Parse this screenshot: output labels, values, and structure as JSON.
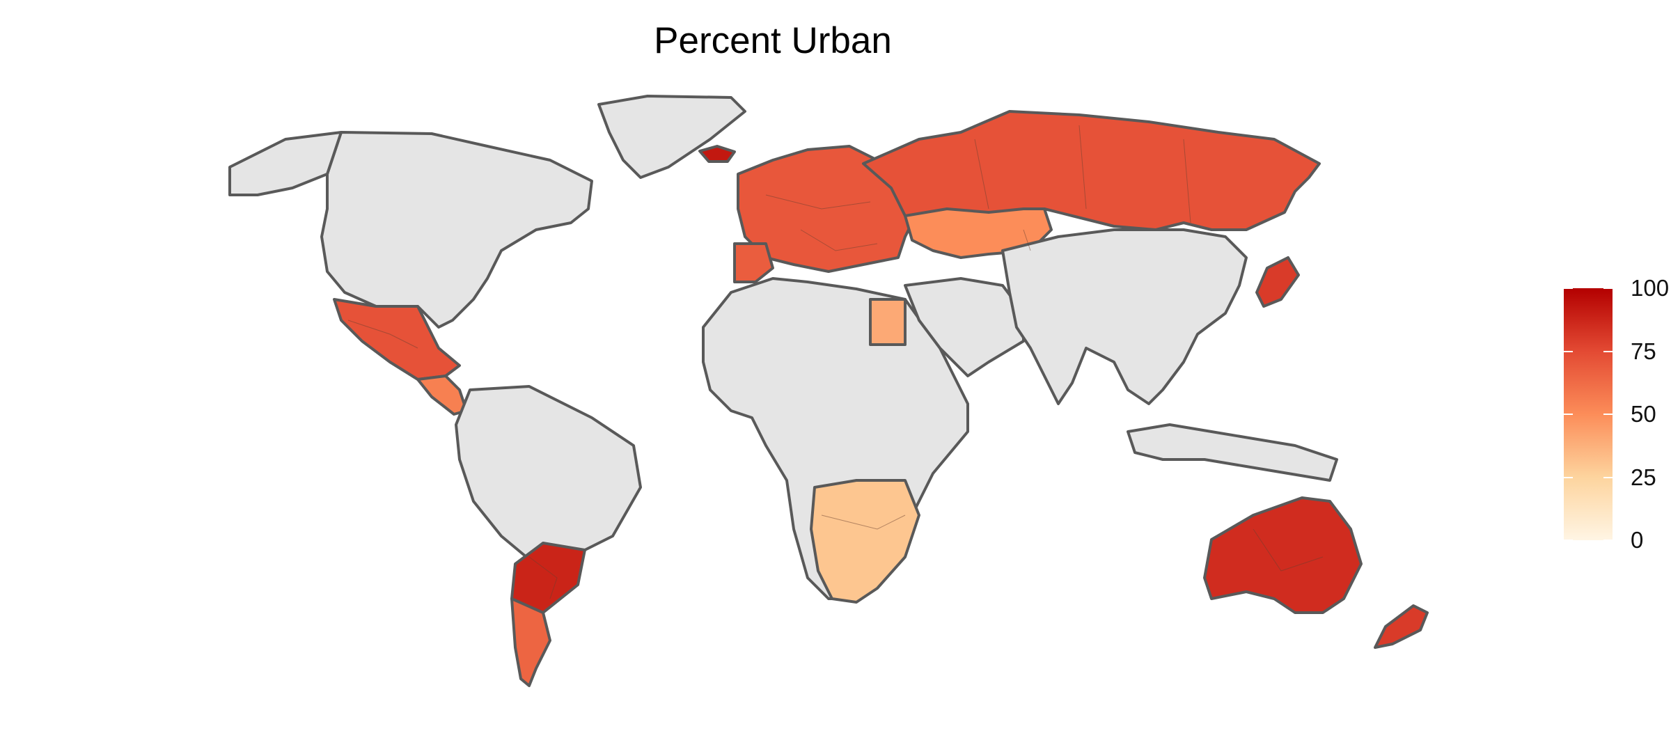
{
  "title": "Percent Urban",
  "legend": {
    "labels": [
      "100",
      "75",
      "50",
      "25",
      "0"
    ],
    "values": [
      100,
      75,
      50,
      25,
      0
    ],
    "colors": [
      "#fff5e4",
      "#fdd49e",
      "#fc8d59",
      "#e34a33",
      "#b30000"
    ]
  },
  "colors": {
    "no_data": "#e5e5e5",
    "border": "#595959"
  },
  "regions": [
    {
      "name": "North America",
      "value": null
    },
    {
      "name": "Greenland",
      "value": null
    },
    {
      "name": "Alaska",
      "value": null
    },
    {
      "name": "Mexico",
      "value": 72
    },
    {
      "name": "Central America",
      "value": 55
    },
    {
      "name": "South America",
      "value": null
    },
    {
      "name": "Argentina",
      "value": 88
    },
    {
      "name": "Patagonia",
      "value": 65
    },
    {
      "name": "Europe",
      "value": 70
    },
    {
      "name": "Iberia",
      "value": 68
    },
    {
      "name": "Iceland",
      "value": 92
    },
    {
      "name": "Russia",
      "value": 72
    },
    {
      "name": "Kazakhstan",
      "value": 50
    },
    {
      "name": "Africa",
      "value": null
    },
    {
      "name": "Egypt",
      "value": 40
    },
    {
      "name": "Southern Africa",
      "value": 30
    },
    {
      "name": "Middle East",
      "value": null
    },
    {
      "name": "Asia",
      "value": null
    },
    {
      "name": "Japan",
      "value": 80
    },
    {
      "name": "Australia",
      "value": 85
    },
    {
      "name": "New Zealand",
      "value": 80
    },
    {
      "name": "Indonesia",
      "value": null
    }
  ]
}
